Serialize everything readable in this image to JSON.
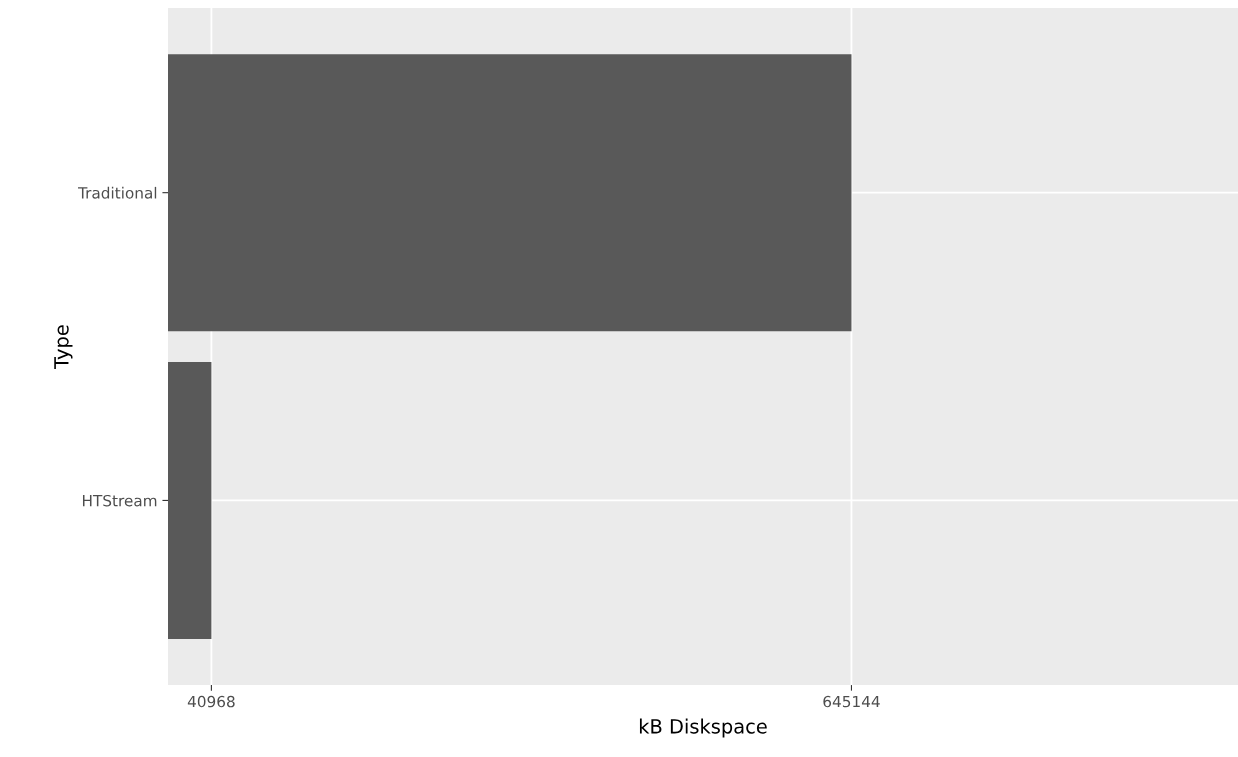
{
  "chart_data": {
    "type": "bar",
    "orientation": "horizontal",
    "xlabel": "kB Diskspace",
    "ylabel": "Type",
    "categories": [
      "Traditional",
      "HTStream"
    ],
    "values": [
      645144,
      40968
    ],
    "color": "#595959",
    "xlim": [
      0,
      1010000
    ],
    "xticks": [
      40968,
      645144
    ],
    "grid": true
  }
}
